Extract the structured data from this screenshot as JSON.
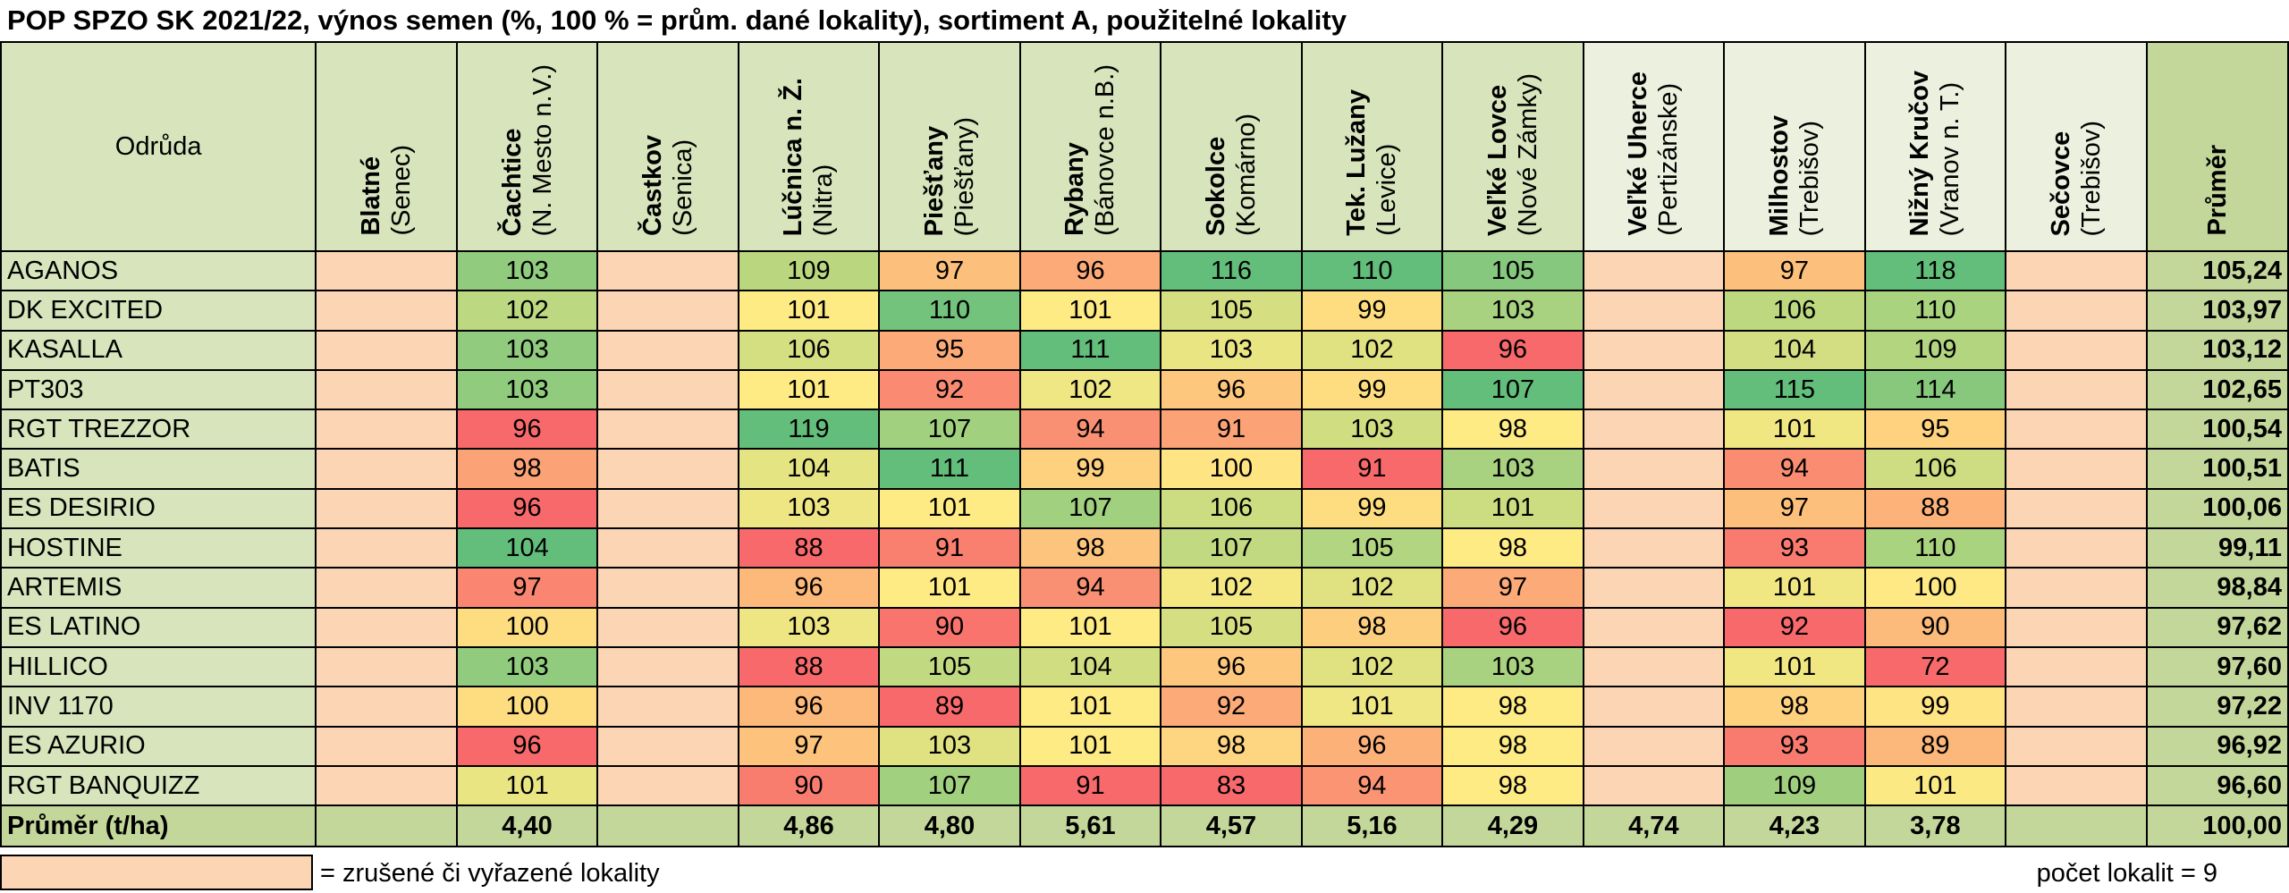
{
  "title": "POP SPZO SK 2021/22, výnos semen (%, 100 % = prům. dané lokality), sortiment A, použitelné lokality",
  "header": {
    "variety": "Odrůda",
    "average": "Průměr"
  },
  "locations": [
    {
      "name": "Blatné",
      "region": "(Senec)",
      "cancelled": true
    },
    {
      "name": "Čachtice",
      "region": "(N. Mesto n.V.)",
      "cancelled": false
    },
    {
      "name": "Častkov",
      "region": "(Senica)",
      "cancelled": true
    },
    {
      "name": "Lúčnica n. Ž.",
      "region": "(Nitra)",
      "cancelled": false
    },
    {
      "name": "Piešťany",
      "region": "(Piešťany)",
      "cancelled": false
    },
    {
      "name": "Rybany",
      "region": "(Bánovce n.B.)",
      "cancelled": false
    },
    {
      "name": "Sokolce",
      "region": "(Komárno)",
      "cancelled": false
    },
    {
      "name": "Tek. Lužany",
      "region": "(Levice)",
      "cancelled": false
    },
    {
      "name": "Veľké Lovce",
      "region": "(Nové Zámky)",
      "cancelled": false
    },
    {
      "name": "Veľké Uherce",
      "region": "(Pertizánske)",
      "cancelled": true
    },
    {
      "name": "Milhostov",
      "region": "(Trebišov)",
      "cancelled": false
    },
    {
      "name": "Nižný Kručov",
      "region": "(Vranov n. T.)",
      "cancelled": false
    },
    {
      "name": "Sečovce",
      "region": "(Trebišov)",
      "cancelled": true
    }
  ],
  "rows": [
    {
      "variety": "AGANOS",
      "values": [
        "",
        "103",
        "",
        "109",
        "97",
        "96",
        "116",
        "110",
        "105",
        "",
        "97",
        "118",
        ""
      ],
      "average": "105,24"
    },
    {
      "variety": "DK EXCITED",
      "values": [
        "",
        "102",
        "",
        "101",
        "110",
        "101",
        "105",
        "99",
        "103",
        "",
        "106",
        "110",
        ""
      ],
      "average": "103,97"
    },
    {
      "variety": "KASALLA",
      "values": [
        "",
        "103",
        "",
        "106",
        "95",
        "111",
        "103",
        "102",
        "96",
        "",
        "104",
        "109",
        ""
      ],
      "average": "103,12"
    },
    {
      "variety": "PT303",
      "values": [
        "",
        "103",
        "",
        "101",
        "92",
        "102",
        "96",
        "99",
        "107",
        "",
        "115",
        "114",
        ""
      ],
      "average": "102,65"
    },
    {
      "variety": "RGT TREZZOR",
      "values": [
        "",
        "96",
        "",
        "119",
        "107",
        "94",
        "91",
        "103",
        "98",
        "",
        "101",
        "95",
        ""
      ],
      "average": "100,54"
    },
    {
      "variety": "BATIS",
      "values": [
        "",
        "98",
        "",
        "104",
        "111",
        "99",
        "100",
        "91",
        "103",
        "",
        "94",
        "106",
        ""
      ],
      "average": "100,51"
    },
    {
      "variety": "ES DESIRIO",
      "values": [
        "",
        "96",
        "",
        "103",
        "101",
        "107",
        "106",
        "99",
        "101",
        "",
        "97",
        "88",
        ""
      ],
      "average": "100,06"
    },
    {
      "variety": "HOSTINE",
      "values": [
        "",
        "104",
        "",
        "88",
        "91",
        "98",
        "107",
        "105",
        "98",
        "",
        "93",
        "110",
        ""
      ],
      "average": "99,11"
    },
    {
      "variety": "ARTEMIS",
      "values": [
        "",
        "97",
        "",
        "96",
        "101",
        "94",
        "102",
        "102",
        "97",
        "",
        "101",
        "100",
        ""
      ],
      "average": "98,84"
    },
    {
      "variety": "ES LATINO",
      "values": [
        "",
        "100",
        "",
        "103",
        "90",
        "101",
        "105",
        "98",
        "96",
        "",
        "92",
        "90",
        ""
      ],
      "average": "97,62"
    },
    {
      "variety": "HILLICO",
      "values": [
        "",
        "103",
        "",
        "88",
        "105",
        "104",
        "96",
        "102",
        "103",
        "",
        "101",
        "72",
        ""
      ],
      "average": "97,60"
    },
    {
      "variety": "INV 1170",
      "values": [
        "",
        "100",
        "",
        "96",
        "89",
        "101",
        "92",
        "101",
        "98",
        "",
        "98",
        "99",
        ""
      ],
      "average": "97,22"
    },
    {
      "variety": "ES AZURIO",
      "values": [
        "",
        "96",
        "",
        "97",
        "103",
        "101",
        "98",
        "96",
        "98",
        "",
        "93",
        "89",
        ""
      ],
      "average": "96,92"
    },
    {
      "variety": "RGT BANQUIZZ",
      "values": [
        "",
        "101",
        "",
        "90",
        "107",
        "91",
        "83",
        "94",
        "98",
        "",
        "109",
        "101",
        ""
      ],
      "average": "96,60"
    }
  ],
  "footer": {
    "label": "Průměr (t/ha)",
    "values": [
      "",
      "4,40",
      "",
      "4,86",
      "4,80",
      "5,61",
      "4,57",
      "5,16",
      "4,29",
      "4,74",
      "4,23",
      "3,78",
      ""
    ],
    "average": "100,00"
  },
  "legend": {
    "text": "= zrušené či vyřazené lokality",
    "swatch_color": "#fcd5b4"
  },
  "location_count": "počet lokalit =  9",
  "colors": {
    "header_bg": "#d7e4bc",
    "average_bg": "#c4d79b",
    "cancelled_bg": "#fcd5b4",
    "scale_low": "#f8696b",
    "scale_mid": "#ffeb84",
    "scale_high": "#63be7b"
  }
}
